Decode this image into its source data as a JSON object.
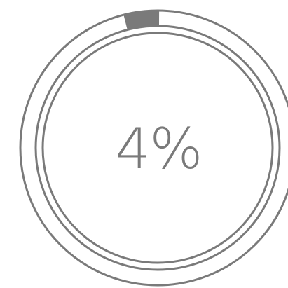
{
  "progress": {
    "label": "4%",
    "value": 0.04,
    "color": "#7a7a7a"
  }
}
